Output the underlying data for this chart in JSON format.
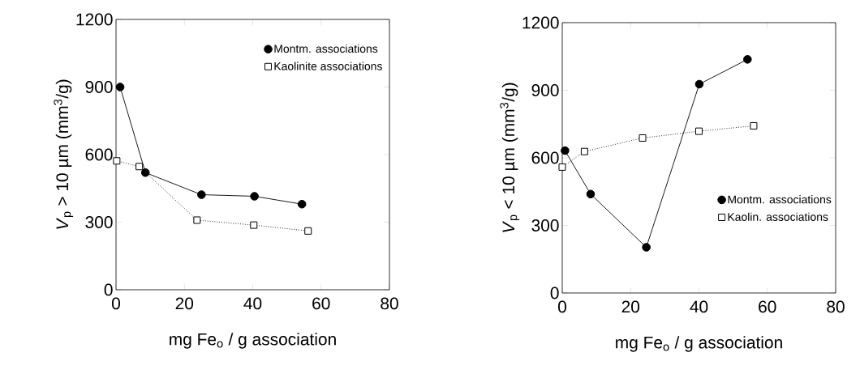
{
  "chart_data": [
    {
      "type": "line",
      "xlabel": "mg Fe$_{o}$ / g association",
      "ylabel": "*V*$_{p}$ > 10 µm (mm$^{3}$/g)",
      "xlim": [
        0,
        80
      ],
      "ylim": [
        0,
        1200
      ],
      "xticks": [
        0,
        20,
        40,
        60,
        80
      ],
      "yticks": [
        0,
        300,
        600,
        900,
        1200
      ],
      "legend": "top right",
      "series": [
        {
          "name": "Montm. associations",
          "color": "#000000",
          "marker": "circle",
          "line_style": "solid",
          "x": [
            1.2,
            8.6,
            25,
            40.5,
            54.4
          ],
          "values": [
            900,
            520,
            422,
            415,
            380
          ]
        },
        {
          "name": "Kaolinite associations",
          "color": "#000000",
          "marker": "square",
          "line_style": "dotted",
          "x": [
            0.2,
            6.8,
            23.7,
            40.3,
            56.2
          ],
          "values": [
            572,
            547,
            309,
            287,
            261
          ]
        }
      ]
    },
    {
      "type": "line",
      "xlabel": "mg Fe$_{o}$ / g association",
      "ylabel": "*V*$_{p}$ < 10 µm (mm$^{3}$/g)",
      "xlim": [
        0,
        80
      ],
      "ylim": [
        0,
        1200
      ],
      "xticks": [
        0,
        20,
        40,
        60,
        80
      ],
      "yticks": [
        0,
        300,
        600,
        900,
        1200
      ],
      "legend": "bottom right",
      "series": [
        {
          "name": "Montm. associations",
          "color": "#000000",
          "marker": "circle",
          "line_style": "solid",
          "x": [
            0.8,
            8.3,
            24.6,
            40.1,
            54.2
          ],
          "values": [
            632,
            439,
            203,
            927,
            1037
          ]
        },
        {
          "name": "Kaolin. associations",
          "color": "#000000",
          "marker": "square",
          "line_style": "dotted",
          "x": [
            0,
            6.5,
            23.5,
            40,
            56
          ],
          "values": [
            559,
            628,
            688,
            718,
            742
          ]
        }
      ]
    }
  ]
}
